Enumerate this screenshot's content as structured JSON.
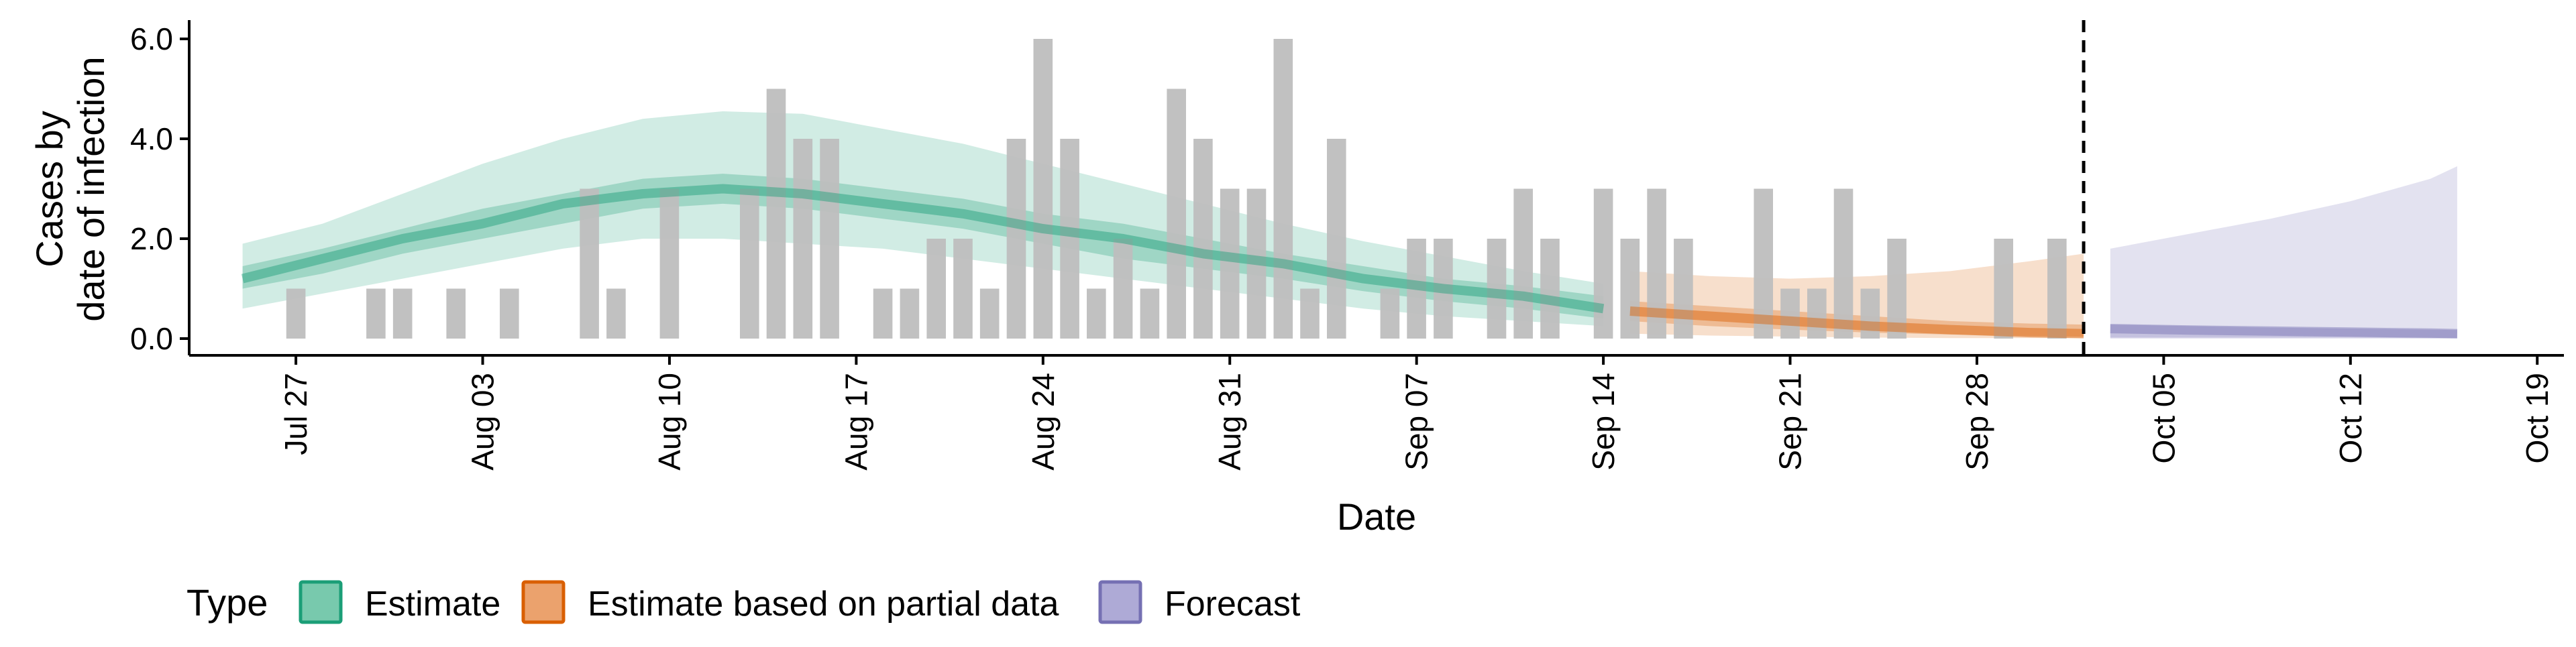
{
  "chart_data": {
    "type": "bar",
    "xlabel": "Date",
    "ylabel_lines": [
      "Cases by",
      "date of infection"
    ],
    "x_range": [
      "2020-07-23",
      "2020-10-20"
    ],
    "ylim": [
      0,
      6.2
    ],
    "y_ticks": [
      {
        "value": 0,
        "label": "0.0"
      },
      {
        "value": 2,
        "label": "2.0"
      },
      {
        "value": 4,
        "label": "4.0"
      },
      {
        "value": 6,
        "label": "6.0"
      }
    ],
    "x_ticks": [
      {
        "date": "2020-07-27",
        "label": "Jul 27"
      },
      {
        "date": "2020-08-03",
        "label": "Aug 03"
      },
      {
        "date": "2020-08-10",
        "label": "Aug 10"
      },
      {
        "date": "2020-08-17",
        "label": "Aug 17"
      },
      {
        "date": "2020-08-24",
        "label": "Aug 24"
      },
      {
        "date": "2020-08-31",
        "label": "Aug 31"
      },
      {
        "date": "2020-09-07",
        "label": "Sep 07"
      },
      {
        "date": "2020-09-14",
        "label": "Sep 14"
      },
      {
        "date": "2020-09-21",
        "label": "Sep 21"
      },
      {
        "date": "2020-09-28",
        "label": "Sep 28"
      },
      {
        "date": "2020-10-05",
        "label": "Oct 05"
      },
      {
        "date": "2020-10-12",
        "label": "Oct 12"
      },
      {
        "date": "2020-10-19",
        "label": "Oct 19"
      }
    ],
    "grid": false,
    "legend_position": "bottom-left",
    "legend_title": "Type",
    "legend": [
      {
        "label": "Estimate",
        "fill": "#78c9ad",
        "stroke": "#1b9e77"
      },
      {
        "label": "Estimate based on partial data",
        "fill": "#eba26d",
        "stroke": "#d95f02"
      },
      {
        "label": "Forecast",
        "fill": "#aeaad6",
        "stroke": "#7570b3"
      }
    ],
    "vline_date": "2020-10-02",
    "reported_cases": {
      "color": "#bebebe",
      "dates": [
        "2020-07-27",
        "2020-07-28",
        "2020-07-29",
        "2020-07-30",
        "2020-07-31",
        "2020-08-01",
        "2020-08-02",
        "2020-08-03",
        "2020-08-04",
        "2020-08-05",
        "2020-08-06",
        "2020-08-07",
        "2020-08-08",
        "2020-08-09",
        "2020-08-10",
        "2020-08-11",
        "2020-08-12",
        "2020-08-13",
        "2020-08-14",
        "2020-08-15",
        "2020-08-16",
        "2020-08-17",
        "2020-08-18",
        "2020-08-19",
        "2020-08-20",
        "2020-08-21",
        "2020-08-22",
        "2020-08-23",
        "2020-08-24",
        "2020-08-25",
        "2020-08-26",
        "2020-08-27",
        "2020-08-28",
        "2020-08-29",
        "2020-08-30",
        "2020-08-31",
        "2020-09-01",
        "2020-09-02",
        "2020-09-03",
        "2020-09-04",
        "2020-09-05",
        "2020-09-06",
        "2020-09-07",
        "2020-09-08",
        "2020-09-09",
        "2020-09-10",
        "2020-09-11",
        "2020-09-12",
        "2020-09-13",
        "2020-09-14",
        "2020-09-15",
        "2020-09-16",
        "2020-09-17",
        "2020-09-18",
        "2020-09-19",
        "2020-09-20",
        "2020-09-21",
        "2020-09-22",
        "2020-09-23",
        "2020-09-24",
        "2020-09-25",
        "2020-09-26",
        "2020-09-27",
        "2020-09-28",
        "2020-09-29",
        "2020-09-30",
        "2020-10-01",
        "2020-10-02"
      ],
      "values": [
        1,
        0,
        0,
        1,
        1,
        0,
        1,
        0,
        1,
        0,
        0,
        3,
        1,
        0,
        3,
        0,
        0,
        3,
        5,
        4,
        4,
        0,
        1,
        1,
        2,
        2,
        1,
        4,
        6,
        4,
        1,
        2,
        1,
        5,
        4,
        3,
        3,
        6,
        1,
        4,
        0,
        1,
        2,
        2,
        0,
        2,
        3,
        2,
        0,
        3,
        2,
        3,
        2,
        0,
        0,
        3,
        1,
        1,
        3,
        1,
        2,
        0,
        0,
        0,
        2,
        0,
        2,
        0
      ]
    },
    "estimate": {
      "dates": [
        "2020-07-25",
        "2020-07-28",
        "2020-07-31",
        "2020-08-03",
        "2020-08-06",
        "2020-08-09",
        "2020-08-12",
        "2020-08-15",
        "2020-08-18",
        "2020-08-21",
        "2020-08-24",
        "2020-08-27",
        "2020-08-30",
        "2020-09-02",
        "2020-09-05",
        "2020-09-08",
        "2020-09-11",
        "2020-09-14"
      ],
      "median": [
        1.2,
        1.6,
        2.0,
        2.3,
        2.7,
        2.9,
        3.0,
        2.9,
        2.7,
        2.5,
        2.2,
        2.0,
        1.7,
        1.5,
        1.2,
        1.0,
        0.85,
        0.6
      ],
      "lower_50": [
        1.0,
        1.3,
        1.7,
        2.0,
        2.3,
        2.6,
        2.7,
        2.6,
        2.4,
        2.2,
        1.9,
        1.6,
        1.4,
        1.2,
        0.95,
        0.75,
        0.6,
        0.4
      ],
      "upper_50": [
        1.45,
        1.8,
        2.2,
        2.6,
        2.9,
        3.2,
        3.3,
        3.2,
        3.0,
        2.8,
        2.5,
        2.3,
        2.0,
        1.7,
        1.45,
        1.2,
        1.05,
        0.85
      ],
      "lower_90": [
        0.6,
        0.9,
        1.2,
        1.5,
        1.8,
        2.0,
        2.0,
        1.9,
        1.8,
        1.6,
        1.4,
        1.2,
        1.0,
        0.8,
        0.6,
        0.45,
        0.35,
        0.25
      ],
      "upper_90": [
        1.9,
        2.3,
        2.9,
        3.5,
        4.0,
        4.4,
        4.55,
        4.5,
        4.2,
        3.9,
        3.5,
        3.1,
        2.7,
        2.3,
        1.95,
        1.65,
        1.35,
        1.1
      ]
    },
    "estimate_partial": {
      "dates": [
        "2020-09-15",
        "2020-09-18",
        "2020-09-21",
        "2020-09-24",
        "2020-09-27",
        "2020-09-30",
        "2020-10-02"
      ],
      "median": [
        0.55,
        0.45,
        0.35,
        0.25,
        0.18,
        0.12,
        0.1
      ],
      "lower_50": [
        0.35,
        0.25,
        0.18,
        0.12,
        0.08,
        0.05,
        0.04
      ],
      "upper_50": [
        0.75,
        0.65,
        0.55,
        0.45,
        0.35,
        0.3,
        0.28
      ],
      "lower_90": [
        0.1,
        0.06,
        0.04,
        0.02,
        0.01,
        0.01,
        0.01
      ],
      "upper_90": [
        1.35,
        1.25,
        1.2,
        1.25,
        1.35,
        1.55,
        1.7
      ]
    },
    "forecast": {
      "dates": [
        "2020-10-03",
        "2020-10-06",
        "2020-10-09",
        "2020-10-12",
        "2020-10-15",
        "2020-10-16"
      ],
      "median": [
        0.2,
        0.17,
        0.15,
        0.13,
        0.11,
        0.1
      ],
      "lower_50": [
        0.02,
        0.02,
        0.02,
        0.02,
        0.01,
        0.01
      ],
      "upper_50": [
        0.28,
        0.25,
        0.22,
        0.2,
        0.18,
        0.17
      ],
      "lower_90": [
        0,
        0,
        0,
        0,
        0,
        0
      ],
      "upper_90": [
        1.8,
        2.1,
        2.4,
        2.75,
        3.2,
        3.45
      ]
    }
  }
}
